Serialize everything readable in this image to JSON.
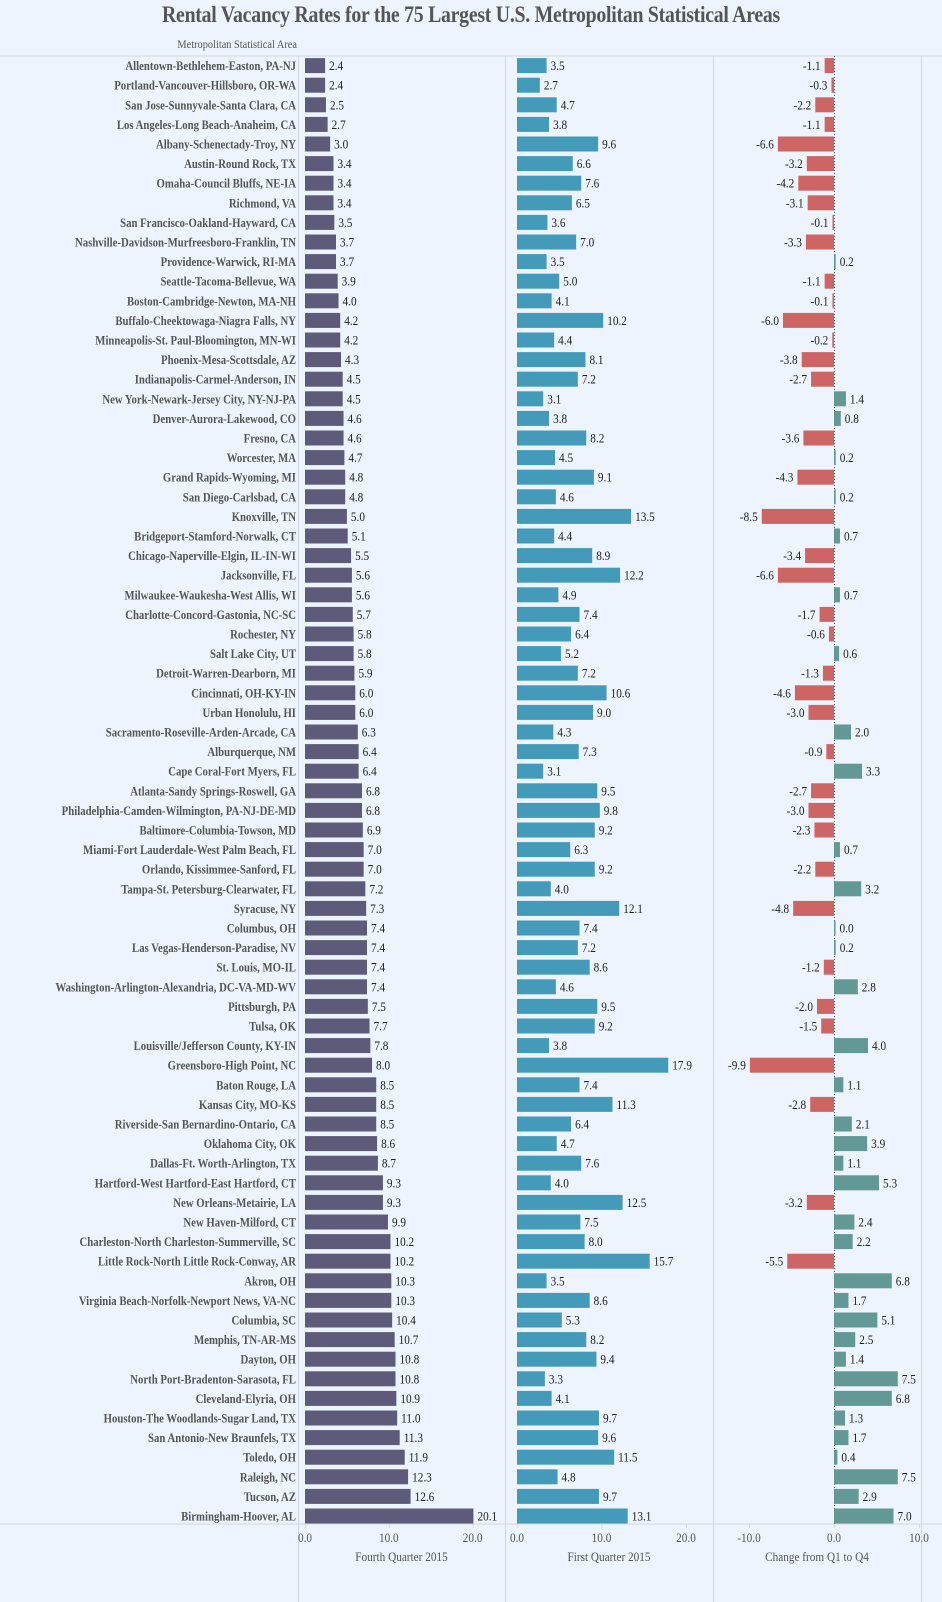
{
  "title": "Rental Vacancy Rates for the 75 Largest U.S. Metropolitan Statistical Areas",
  "row_header": "Metropolitan Statistical Area",
  "chart_data": {
    "type": "bar",
    "orientation": "horizontal",
    "title": "Rental Vacancy Rates for the 75 Largest U.S. Metropolitan Statistical Areas",
    "row_label_header": "Metropolitan Statistical Area",
    "colors": {
      "fourth_quarter": "#5e5b7a",
      "first_quarter": "#449bb9",
      "negative_change": "#cd6565",
      "positive_change": "#629896",
      "background": "#edf4fd"
    },
    "panels": [
      {
        "key": "q4",
        "xlabel": "Fourth Quarter 2015",
        "xlim": [
          0,
          22.5
        ],
        "ticks": [
          "0.0",
          "10.0",
          "20.0"
        ],
        "tick_values": [
          0,
          10,
          20
        ]
      },
      {
        "key": "q1",
        "xlabel": "First Quarter 2015",
        "xlim": [
          0,
          22.5
        ],
        "ticks": [
          "0.0",
          "10.0",
          "20.0"
        ],
        "tick_values": [
          0,
          10,
          20
        ]
      },
      {
        "key": "change",
        "xlabel": "Change from Q1 to Q4",
        "xlim": [
          -12.5,
          12.5
        ],
        "ticks": [
          "-10.0",
          "0.0",
          "10.0"
        ],
        "tick_values": [
          -10,
          0,
          10
        ]
      }
    ],
    "categories": [
      "Allentown-Bethlehem-Easton, PA-NJ",
      "Portland-Vancouver-Hillsboro, OR-WA",
      "San Jose-Sunnyvale-Santa Clara, CA",
      "Los Angeles-Long Beach-Anaheim, CA",
      "Albany-Schenectady-Troy, NY",
      "Austin-Round Rock, TX",
      "Omaha-Council Bluffs, NE-IA",
      "Richmond, VA",
      "San Francisco-Oakland-Hayward, CA",
      "Nashville-Davidson-Murfreesboro-Franklin, TN",
      "Providence-Warwick, RI-MA",
      "Seattle-Tacoma-Bellevue, WA",
      "Boston-Cambridge-Newton, MA-NH",
      "Buffalo-Cheektowaga-Niagra Falls, NY",
      "Minneapolis-St. Paul-Bloomington, MN-WI",
      "Phoenix-Mesa-Scottsdale, AZ",
      "Indianapolis-Carmel-Anderson, IN",
      "New York-Newark-Jersey City, NY-NJ-PA",
      "Denver-Aurora-Lakewood, CO",
      "Fresno, CA",
      "Worcester, MA",
      "Grand Rapids-Wyoming, MI",
      "San Diego-Carlsbad, CA",
      "Knoxville, TN",
      "Bridgeport-Stamford-Norwalk, CT",
      "Chicago-Naperville-Elgin, IL-IN-WI",
      "Jacksonville, FL",
      "Milwaukee-Waukesha-West Allis, WI",
      "Charlotte-Concord-Gastonia, NC-SC",
      "Rochester, NY",
      "Salt Lake City, UT",
      "Detroit-Warren-Dearborn, MI",
      "Cincinnati, OH-KY-IN",
      "Urban Honolulu, HI",
      "Sacramento-Roseville-Arden-Arcade, CA",
      "Alburquerque, NM",
      "Cape Coral-Fort Myers, FL",
      "Atlanta-Sandy Springs-Roswell, GA",
      "Philadelphia-Camden-Wilmington, PA-NJ-DE-MD",
      "Baltimore-Columbia-Towson, MD",
      "Miami-Fort Lauderdale-West Palm Beach, FL",
      "Orlando, Kissimmee-Sanford, FL",
      "Tampa-St. Petersburg-Clearwater, FL",
      "Syracuse, NY",
      "Columbus, OH",
      "Las Vegas-Henderson-Paradise, NV",
      "St. Louis, MO-IL",
      "Washington-Arlington-Alexandria, DC-VA-MD-WV",
      "Pittsburgh, PA",
      "Tulsa, OK",
      "Louisville/Jefferson County, KY-IN",
      "Greensboro-High Point, NC",
      "Baton Rouge, LA",
      "Kansas City, MO-KS",
      "Riverside-San Bernardino-Ontario, CA",
      "Oklahoma City, OK",
      "Dallas-Ft. Worth-Arlington, TX",
      "Hartford-West Hartford-East Hartford, CT",
      "New Orleans-Metairie, LA",
      "New Haven-Milford, CT",
      "Charleston-North Charleston-Summerville, SC",
      "Little Rock-North Little Rock-Conway, AR",
      "Akron, OH",
      "Virginia Beach-Norfolk-Newport News, VA-NC",
      "Columbia, SC",
      "Memphis, TN-AR-MS",
      "Dayton, OH",
      "North Port-Bradenton-Sarasota, FL",
      "Cleveland-Elyria, OH",
      "Houston-The Woodlands-Sugar Land, TX",
      "San Antonio-New Braunfels, TX",
      "Toledo, OH",
      "Raleigh, NC",
      "Tucson, AZ",
      "Birmingham-Hoover, AL"
    ],
    "series": [
      {
        "name": "Fourth Quarter 2015",
        "values": [
          2.4,
          2.4,
          2.5,
          2.7,
          3.0,
          3.4,
          3.4,
          3.4,
          3.5,
          3.7,
          3.7,
          3.9,
          4.0,
          4.2,
          4.2,
          4.3,
          4.5,
          4.5,
          4.6,
          4.6,
          4.7,
          4.8,
          4.8,
          5.0,
          5.1,
          5.5,
          5.6,
          5.6,
          5.7,
          5.8,
          5.8,
          5.9,
          6.0,
          6.0,
          6.3,
          6.4,
          6.4,
          6.8,
          6.8,
          6.9,
          7.0,
          7.0,
          7.2,
          7.3,
          7.4,
          7.4,
          7.4,
          7.4,
          7.5,
          7.7,
          7.8,
          8.0,
          8.5,
          8.5,
          8.5,
          8.6,
          8.7,
          9.3,
          9.3,
          9.9,
          10.2,
          10.2,
          10.3,
          10.3,
          10.4,
          10.7,
          10.8,
          10.8,
          10.9,
          11.0,
          11.3,
          11.9,
          12.3,
          12.6,
          20.1
        ]
      },
      {
        "name": "First Quarter 2015",
        "values": [
          3.5,
          2.7,
          4.7,
          3.8,
          9.6,
          6.6,
          7.6,
          6.5,
          3.6,
          7.0,
          3.5,
          5.0,
          4.1,
          10.2,
          4.4,
          8.1,
          7.2,
          3.1,
          3.8,
          8.2,
          4.5,
          9.1,
          4.6,
          13.5,
          4.4,
          8.9,
          12.2,
          4.9,
          7.4,
          6.4,
          5.2,
          7.2,
          10.6,
          9.0,
          4.3,
          7.3,
          3.1,
          9.5,
          9.8,
          9.2,
          6.3,
          9.2,
          4.0,
          12.1,
          7.4,
          7.2,
          8.6,
          4.6,
          9.5,
          9.2,
          3.8,
          17.9,
          7.4,
          11.3,
          6.4,
          4.7,
          7.6,
          4.0,
          12.5,
          7.5,
          8.0,
          15.7,
          3.5,
          8.6,
          5.3,
          8.2,
          9.4,
          3.3,
          4.1,
          9.7,
          9.6,
          11.5,
          4.8,
          9.7,
          13.1
        ]
      },
      {
        "name": "Change from Q1 to Q4",
        "values": [
          -1.1,
          -0.3,
          -2.2,
          -1.1,
          -6.6,
          -3.2,
          -4.2,
          -3.1,
          -0.1,
          -3.3,
          0.2,
          -1.1,
          -0.1,
          -6.0,
          -0.2,
          -3.8,
          -2.7,
          1.4,
          0.8,
          -3.6,
          0.2,
          -4.3,
          0.2,
          -8.5,
          0.7,
          -3.4,
          -6.6,
          0.7,
          -1.7,
          -0.6,
          0.6,
          -1.3,
          -4.6,
          -3.0,
          2.0,
          -0.9,
          3.3,
          -2.7,
          -3.0,
          -2.3,
          0.7,
          -2.2,
          3.2,
          -4.8,
          0.0,
          0.2,
          -1.2,
          2.8,
          -2.0,
          -1.5,
          4.0,
          -9.9,
          1.1,
          -2.8,
          2.1,
          3.9,
          1.1,
          5.3,
          -3.2,
          2.4,
          2.2,
          -5.5,
          6.8,
          1.7,
          5.1,
          2.5,
          1.4,
          7.5,
          6.8,
          1.3,
          1.7,
          0.4,
          7.5,
          2.9,
          7.0
        ]
      }
    ],
    "grid": false,
    "legend": "none"
  }
}
